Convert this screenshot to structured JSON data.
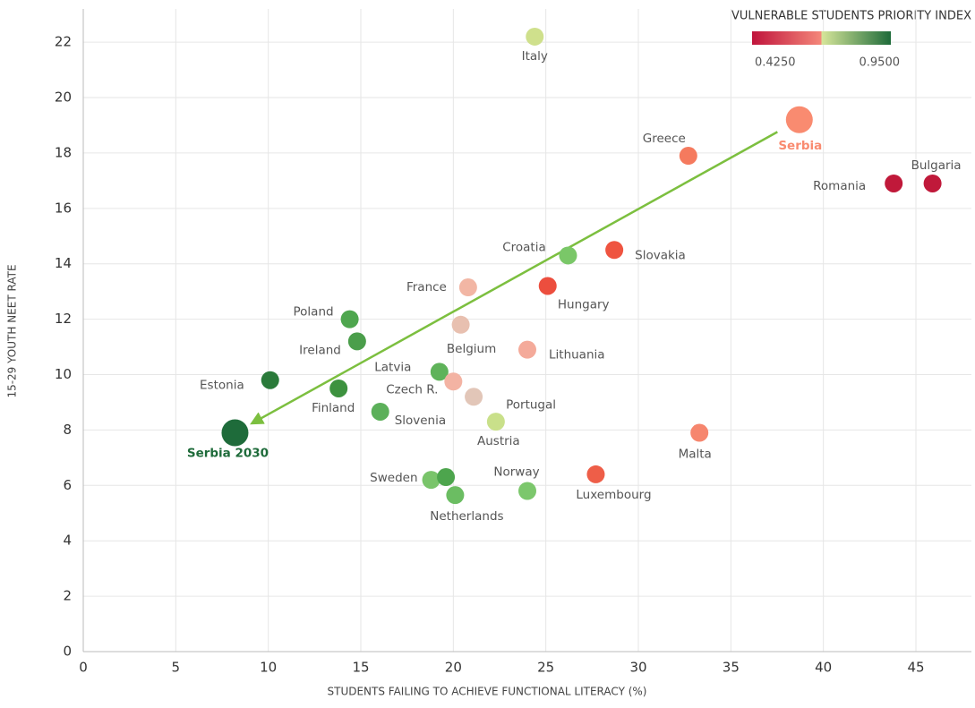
{
  "chart_data": {
    "type": "scatter",
    "xlabel": "STUDENTS FAILING TO ACHIEVE FUNCTIONAL LITERACY (%)",
    "ylabel": "15-29 YOUTH NEET RATE",
    "xlim": [
      0,
      48
    ],
    "ylim": [
      0,
      23.2
    ],
    "xticks": [
      0,
      5,
      10,
      15,
      20,
      25,
      30,
      35,
      40,
      45
    ],
    "yticks": [
      0,
      2,
      4,
      6,
      8,
      10,
      12,
      14,
      16,
      18,
      20,
      22
    ],
    "grid": true,
    "colorbar": {
      "title": "VULNERABLE STUDENTS PRIORITY INDEX",
      "lim": [
        0.425,
        0.95
      ],
      "ticks": [
        {
          "value": 0.425,
          "label": "0.4250"
        },
        {
          "value": 0.95,
          "label": "0.9500"
        }
      ],
      "colors": [
        "#c0143c",
        "#f4877a",
        "#d7e69a",
        "#1e6b3a"
      ]
    },
    "points": [
      {
        "label": "Italy",
        "x": 24.4,
        "y": 22.2,
        "color": "#cfe08c"
      },
      {
        "label": "Serbia",
        "x": 38.7,
        "y": 19.2,
        "color": "#f98b70",
        "highlight": true
      },
      {
        "label": "Greece",
        "x": 32.7,
        "y": 17.9,
        "color": "#f57a5e"
      },
      {
        "label": "Romania",
        "x": 43.8,
        "y": 16.9,
        "color": "#c0193a"
      },
      {
        "label": "Bulgaria",
        "x": 45.9,
        "y": 16.9,
        "color": "#c0193a"
      },
      {
        "label": "Slovakia",
        "x": 28.7,
        "y": 14.5,
        "color": "#ef5440"
      },
      {
        "label": "Croatia",
        "x": 26.2,
        "y": 14.3,
        "color": "#7ac768"
      },
      {
        "label": "Hungary",
        "x": 25.1,
        "y": 13.2,
        "color": "#ec4e3e"
      },
      {
        "label": "France",
        "x": 20.8,
        "y": 13.15,
        "color": "#f2b6a4"
      },
      {
        "label": "Poland",
        "x": 14.4,
        "y": 12.0,
        "color": "#4ea64e"
      },
      {
        "label": "Belgium",
        "x": 20.4,
        "y": 11.8,
        "color": "#e8c0b0"
      },
      {
        "label": "Ireland",
        "x": 14.8,
        "y": 11.2,
        "color": "#4b9e4b"
      },
      {
        "label": "Lithuania",
        "x": 24.0,
        "y": 10.9,
        "color": "#f4aa9a"
      },
      {
        "label": "Latvia",
        "x": 19.25,
        "y": 10.1,
        "color": "#5fb35a"
      },
      {
        "label": "Estonia",
        "x": 10.1,
        "y": 9.8,
        "color": "#2a7a3a"
      },
      {
        "label": "Czech R.",
        "x": 20.0,
        "y": 9.75,
        "color": "#f3b3a3"
      },
      {
        "label": "Finland",
        "x": 13.8,
        "y": 9.5,
        "color": "#3d923f"
      },
      {
        "label": "Portugal",
        "x": 21.1,
        "y": 9.2,
        "color": "#e2c6b8"
      },
      {
        "label": "Slovenia",
        "x": 16.05,
        "y": 8.66,
        "color": "#5cb05a"
      },
      {
        "label": "Austria",
        "x": 22.3,
        "y": 8.3,
        "color": "#c9e08a"
      },
      {
        "label": "Serbia 2030",
        "x": 8.2,
        "y": 7.9,
        "color": "#1e6b3a",
        "highlight": true
      },
      {
        "label": "Malta",
        "x": 33.3,
        "y": 7.9,
        "color": "#f6866e"
      },
      {
        "label": "Luxembourg",
        "x": 27.7,
        "y": 6.4,
        "color": "#ee5e48"
      },
      {
        "label": "Sweden",
        "x": 18.8,
        "y": 6.2,
        "color": "#79c46a"
      },
      {
        "label": null,
        "x": 19.6,
        "y": 6.3,
        "color": "#4da54d"
      },
      {
        "label": "Norway",
        "x": 24.0,
        "y": 5.8,
        "color": "#7cc76c"
      },
      {
        "label": "Netherlands",
        "x": 20.1,
        "y": 5.65,
        "color": "#6bbd62"
      }
    ]
  }
}
